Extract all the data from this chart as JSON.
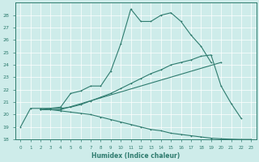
{
  "xlabel": "Humidex (Indice chaleur)",
  "bg_color": "#ceecea",
  "line_color": "#2e7b6e",
  "xlim": [
    -0.5,
    23.5
  ],
  "ylim": [
    18,
    29
  ],
  "xticks": [
    0,
    1,
    2,
    3,
    4,
    5,
    6,
    7,
    8,
    9,
    10,
    11,
    12,
    13,
    14,
    15,
    16,
    17,
    18,
    19,
    20,
    21,
    22,
    23
  ],
  "yticks": [
    18,
    19,
    20,
    21,
    22,
    23,
    24,
    25,
    26,
    27,
    28
  ],
  "line1_x": [
    0,
    1,
    2,
    3,
    4,
    5,
    6,
    7,
    8,
    9,
    10,
    11,
    12,
    13,
    14,
    15,
    16,
    17,
    18,
    19
  ],
  "line1_y": [
    19.0,
    20.5,
    20.5,
    20.5,
    20.6,
    21.7,
    21.9,
    22.3,
    22.3,
    23.5,
    25.7,
    28.5,
    27.5,
    27.5,
    28.0,
    28.2,
    27.5,
    26.4,
    25.5,
    24.2
  ],
  "line2_x": [
    2,
    3,
    4,
    5,
    6,
    7,
    8,
    9,
    10,
    11,
    12,
    13,
    14,
    15,
    16,
    17,
    18,
    19,
    20,
    21,
    22
  ],
  "line2_y": [
    20.4,
    20.5,
    20.5,
    20.6,
    20.8,
    21.1,
    21.4,
    21.7,
    22.1,
    22.5,
    22.9,
    23.3,
    23.6,
    24.0,
    24.2,
    24.4,
    24.7,
    24.8,
    22.3,
    20.9,
    19.7
  ],
  "line3_x": [
    2,
    3,
    4,
    20
  ],
  "line3_y": [
    20.4,
    20.4,
    20.4,
    24.2
  ],
  "line4_x": [
    2,
    3,
    4,
    5,
    6,
    7,
    8,
    9,
    10,
    11,
    12,
    13,
    14,
    15,
    16,
    17,
    18,
    19,
    20,
    21,
    22,
    23
  ],
  "line4_y": [
    20.4,
    20.4,
    20.3,
    20.2,
    20.1,
    20.0,
    19.8,
    19.6,
    19.4,
    19.2,
    19.0,
    18.8,
    18.7,
    18.5,
    18.4,
    18.3,
    18.2,
    18.1,
    18.05,
    18.02,
    18.0,
    18.0
  ]
}
